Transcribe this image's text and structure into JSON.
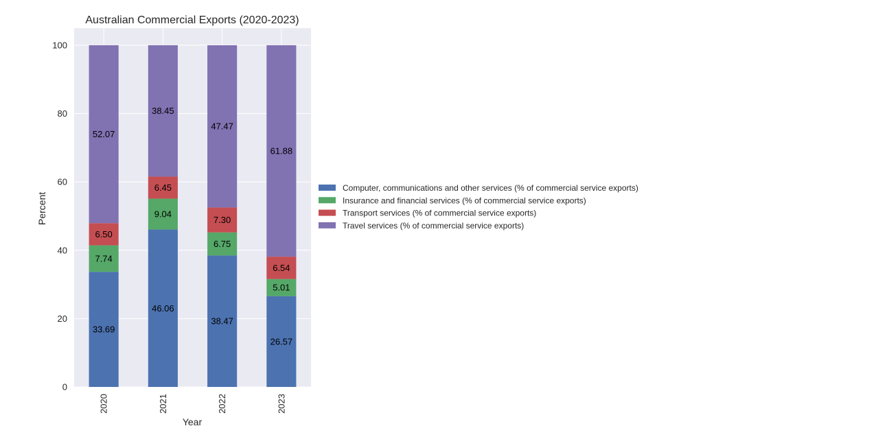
{
  "chart_data": {
    "type": "bar",
    "stacked": true,
    "title": "Australian Commercial Exports (2020-2023)",
    "xlabel": "Year",
    "ylabel": "Percent",
    "categories": [
      "2020",
      "2021",
      "2022",
      "2023"
    ],
    "ylim": [
      0,
      105
    ],
    "yticks": [
      0,
      20,
      40,
      60,
      80,
      100
    ],
    "grid": true,
    "legend_position": "center-right outside",
    "series": [
      {
        "name": "Computer, communications and other services (% of commercial service exports)",
        "color": "#4c72b0",
        "values": [
          33.69,
          46.06,
          38.47,
          26.57
        ],
        "labels": [
          "33.69",
          "46.06",
          "38.47",
          "26.57"
        ]
      },
      {
        "name": "Insurance and financial services (% of commercial service exports)",
        "color": "#55a868",
        "values": [
          7.74,
          9.04,
          6.75,
          5.01
        ],
        "labels": [
          "7.74",
          "9.04",
          "6.75",
          "5.01"
        ]
      },
      {
        "name": "Transport services (% of commercial service exports)",
        "color": "#c44e52",
        "values": [
          6.5,
          6.45,
          7.3,
          6.54
        ],
        "labels": [
          "6.50",
          "6.45",
          "7.30",
          "6.54"
        ]
      },
      {
        "name": "Travel services (% of commercial service exports)",
        "color": "#8172b2",
        "values": [
          52.07,
          38.45,
          47.47,
          61.88
        ],
        "labels": [
          "52.07",
          "38.45",
          "47.47",
          "61.88"
        ]
      }
    ]
  },
  "colors": {
    "plot_background": "#eaeaf2",
    "grid": "#ffffff"
  }
}
